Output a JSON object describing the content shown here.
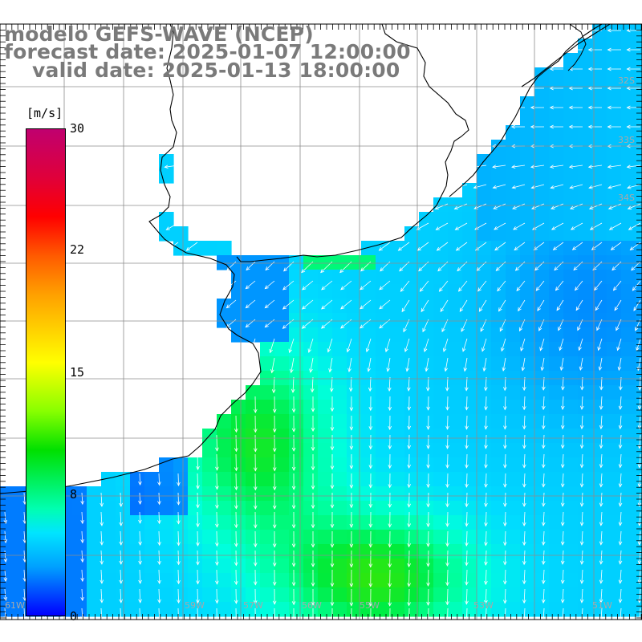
{
  "header": {
    "line1": "modelo GEFS-WAVE (NCEP)",
    "line2": "forecast date: 2025-01-07 12:00:00",
    "line3": "valid date: 2025-01-13 18:00:00"
  },
  "colorbar": {
    "unit": "[m/s]",
    "labels": [
      "30",
      "22",
      "15",
      "8",
      "0"
    ],
    "colors": [
      "#c0006f",
      "#ff0000",
      "#ff8000",
      "#ffff00",
      "#00e000",
      "#00e5ff",
      "#0000ff"
    ]
  },
  "map": {
    "land_color": "#ffffff",
    "grid_color": "#8c8c8c",
    "arrow_color": "#ffffff",
    "lat_labels": [
      "32S",
      "33S",
      "34S"
    ],
    "lon_labels": [
      "61W",
      "59W",
      "57W",
      "56W",
      "55W",
      "53W",
      "51W"
    ]
  }
}
